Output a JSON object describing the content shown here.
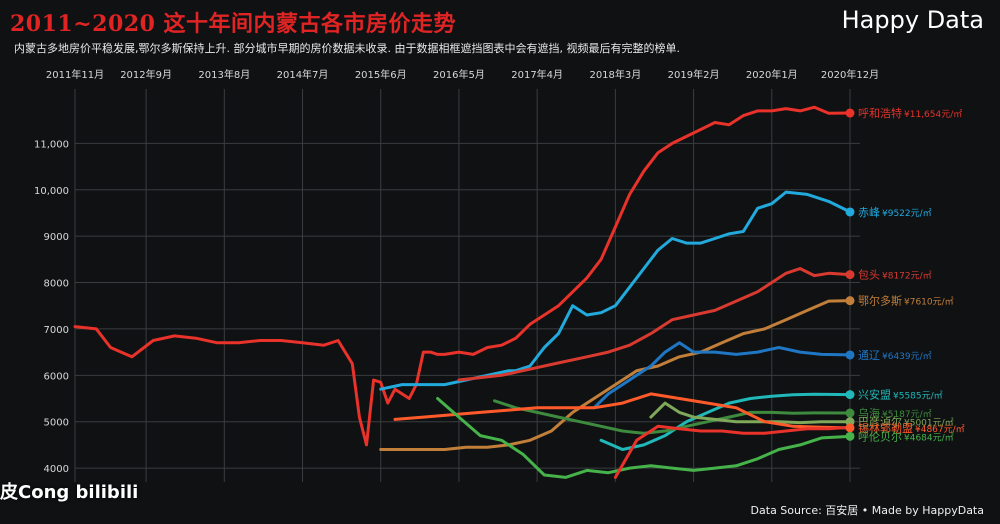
{
  "header": {
    "title": "2011~2020 这十年间内蒙古各市房价走势",
    "subtitle": "内蒙古多地房价平稳发展,鄂尔多斯保持上升. 部分城市早期的房价数据未收录. 由于数据相框遮挡图表中会有遮挡, 视频最后有完整的榜单.",
    "brand_word1": "Happy",
    "brand_word2": "Data"
  },
  "footer": {
    "source": "Data Source: 百安居 • Made by HappyData",
    "watermark": "皮Cong bilibili"
  },
  "colors": {
    "background": "#0f1113",
    "title": "#e02424",
    "grid": "#3a3d40",
    "axis_text": "#d8d8d8"
  },
  "chart_data": {
    "type": "line",
    "title": "",
    "xlabel": "",
    "ylabel": "",
    "x_axis_position": "top",
    "x_tick_labels": [
      "2011年11月",
      "2012年9月",
      "2013年8月",
      "2014年7月",
      "2015年6月",
      "2016年5月",
      "2017年4月",
      "2018年3月",
      "2019年2月",
      "2020年1月",
      "2020年12月"
    ],
    "x_ticks": [
      "2011-11",
      "2012-09",
      "2013-08",
      "2014-07",
      "2015-06",
      "2016-05",
      "2017-04",
      "2018-03",
      "2019-02",
      "2020-01",
      "2020-12"
    ],
    "xlim": [
      "2011-11",
      "2020-12"
    ],
    "ylim": [
      3700,
      12000
    ],
    "y_ticks": [
      4000,
      5000,
      6000,
      7000,
      8000,
      9000,
      10000,
      11000
    ],
    "y_tick_labels": [
      "4000",
      "5000",
      "6000",
      "7000",
      "8000",
      "9000",
      "10,000",
      "11,000"
    ],
    "grid": true,
    "series": [
      {
        "name": "呼和浩特",
        "label": "¥11,654元/㎡",
        "color": "#e8322a",
        "x": [
          "2011-11",
          "2012-02",
          "2012-04",
          "2012-07",
          "2012-10",
          "2013-01",
          "2013-04",
          "2013-07",
          "2013-10",
          "2014-01",
          "2014-04",
          "2014-07",
          "2014-10",
          "2014-12",
          "2015-02",
          "2015-03",
          "2015-04",
          "2015-05",
          "2015-06",
          "2015-07",
          "2015-08",
          "2015-09",
          "2015-10",
          "2015-11",
          "2015-12",
          "2016-01",
          "2016-02",
          "2016-03",
          "2016-05",
          "2016-07",
          "2016-09",
          "2016-11",
          "2017-01",
          "2017-03",
          "2017-05",
          "2017-07",
          "2017-09",
          "2017-11",
          "2018-01",
          "2018-03",
          "2018-05",
          "2018-07",
          "2018-09",
          "2018-11",
          "2019-01",
          "2019-03",
          "2019-05",
          "2019-07",
          "2019-09",
          "2019-11",
          "2020-01",
          "2020-03",
          "2020-05",
          "2020-07",
          "2020-09",
          "2020-12"
        ],
        "values": [
          7050,
          7000,
          6600,
          6400,
          6750,
          6850,
          6800,
          6700,
          6700,
          6750,
          6750,
          6700,
          6650,
          6750,
          6250,
          5100,
          4500,
          5900,
          5850,
          5400,
          5700,
          5600,
          5500,
          5800,
          6500,
          6500,
          6450,
          6450,
          6500,
          6450,
          6600,
          6650,
          6800,
          7100,
          7300,
          7500,
          7800,
          8100,
          8500,
          9200,
          9900,
          10400,
          10800,
          11000,
          11150,
          11300,
          11450,
          11400,
          11600,
          11700,
          11700,
          11750,
          11700,
          11780,
          11650,
          11654
        ]
      },
      {
        "name": "赤峰",
        "label": "¥9522元/㎡",
        "color": "#22aadd",
        "x": [
          "2015-06",
          "2015-09",
          "2015-12",
          "2016-03",
          "2016-06",
          "2016-09",
          "2016-12",
          "2017-01",
          "2017-03",
          "2017-05",
          "2017-07",
          "2017-09",
          "2017-11",
          "2018-01",
          "2018-03",
          "2018-05",
          "2018-07",
          "2018-09",
          "2018-11",
          "2019-01",
          "2019-03",
          "2019-05",
          "2019-07",
          "2019-09",
          "2019-11",
          "2020-01",
          "2020-03",
          "2020-06",
          "2020-09",
          "2020-12"
        ],
        "values": [
          5700,
          5800,
          5800,
          5800,
          5900,
          6000,
          6100,
          6100,
          6200,
          6600,
          6900,
          7500,
          7300,
          7350,
          7500,
          7900,
          8300,
          8700,
          8950,
          8850,
          8850,
          8950,
          9050,
          9100,
          9600,
          9700,
          9950,
          9900,
          9750,
          9522
        ]
      },
      {
        "name": "包头",
        "label": "¥8172元/㎡",
        "color": "#d83a30",
        "x": [
          "2016-05",
          "2016-08",
          "2016-11",
          "2017-02",
          "2017-05",
          "2017-08",
          "2017-11",
          "2018-02",
          "2018-05",
          "2018-08",
          "2018-11",
          "2019-02",
          "2019-05",
          "2019-08",
          "2019-11",
          "2020-01",
          "2020-03",
          "2020-05",
          "2020-07",
          "2020-09",
          "2020-12"
        ],
        "values": [
          5900,
          5950,
          6000,
          6100,
          6200,
          6300,
          6400,
          6500,
          6650,
          6900,
          7200,
          7300,
          7400,
          7600,
          7800,
          8000,
          8200,
          8300,
          8150,
          8200,
          8172
        ]
      },
      {
        "name": "鄂尔多斯",
        "label": "¥7610元/㎡",
        "color": "#c27f3a",
        "x": [
          "2015-06",
          "2015-09",
          "2015-12",
          "2016-03",
          "2016-06",
          "2016-09",
          "2016-12",
          "2017-03",
          "2017-06",
          "2017-09",
          "2017-12",
          "2018-03",
          "2018-06",
          "2018-09",
          "2018-12",
          "2019-03",
          "2019-06",
          "2019-09",
          "2019-12",
          "2020-03",
          "2020-06",
          "2020-09",
          "2020-12"
        ],
        "values": [
          4400,
          4400,
          4400,
          4400,
          4450,
          4450,
          4500,
          4600,
          4800,
          5200,
          5500,
          5800,
          6100,
          6200,
          6400,
          6500,
          6700,
          6900,
          7000,
          7200,
          7400,
          7600,
          7610
        ]
      },
      {
        "name": "通辽",
        "label": "¥6439元/㎡",
        "color": "#1f77c4",
        "x": [
          "2017-12",
          "2018-02",
          "2018-04",
          "2018-06",
          "2018-08",
          "2018-10",
          "2018-12",
          "2019-02",
          "2019-05",
          "2019-08",
          "2019-11",
          "2020-02",
          "2020-05",
          "2020-08",
          "2020-12"
        ],
        "values": [
          5300,
          5600,
          5800,
          6000,
          6200,
          6500,
          6700,
          6500,
          6500,
          6450,
          6500,
          6600,
          6500,
          6450,
          6439
        ]
      },
      {
        "name": "兴安盟",
        "label": "¥5585元/㎡",
        "color": "#20b8b8",
        "x": [
          "2018-01",
          "2018-04",
          "2018-07",
          "2018-10",
          "2019-01",
          "2019-04",
          "2019-07",
          "2019-10",
          "2020-01",
          "2020-04",
          "2020-07",
          "2020-12"
        ],
        "values": [
          4600,
          4400,
          4500,
          4700,
          5000,
          5200,
          5400,
          5500,
          5550,
          5580,
          5590,
          5585
        ]
      },
      {
        "name": "乌海",
        "label": "¥5187元/㎡",
        "color": "#3e8a3e",
        "x": [
          "2016-10",
          "2017-01",
          "2017-04",
          "2017-07",
          "2017-10",
          "2018-01",
          "2018-04",
          "2018-07",
          "2018-10",
          "2019-01",
          "2019-04",
          "2019-07",
          "2019-10",
          "2020-01",
          "2020-04",
          "2020-07",
          "2020-12"
        ],
        "values": [
          5450,
          5300,
          5200,
          5100,
          5000,
          4900,
          4800,
          4750,
          4800,
          4900,
          5000,
          5100,
          5200,
          5200,
          5180,
          5190,
          5187
        ]
      },
      {
        "name": "巴彦淖尔",
        "label": "¥5001元/㎡",
        "color": "#7fa85a",
        "x": [
          "2018-08",
          "2018-10",
          "2018-12",
          "2019-02",
          "2019-05",
          "2019-08",
          "2019-11",
          "2020-02",
          "2020-05",
          "2020-08",
          "2020-12"
        ],
        "values": [
          5100,
          5400,
          5200,
          5100,
          5050,
          5000,
          5000,
          5000,
          4980,
          5000,
          5001
        ]
      },
      {
        "name": "锡林郭勒盟",
        "label": "¥4867元/㎡",
        "color": "#ff5a2a",
        "x": [
          "2015-08",
          "2015-12",
          "2016-04",
          "2016-08",
          "2016-12",
          "2017-04",
          "2017-08",
          "2017-12",
          "2018-04",
          "2018-08",
          "2018-12",
          "2019-04",
          "2019-08",
          "2019-12",
          "2020-04",
          "2020-08",
          "2020-12"
        ],
        "values": [
          5050,
          5100,
          5150,
          5200,
          5250,
          5300,
          5300,
          5300,
          5400,
          5600,
          5500,
          5400,
          5300,
          5000,
          4900,
          4880,
          4867
        ]
      },
      {
        "name": "呼伦贝尔",
        "label": "¥4684元/㎡",
        "color": "#46b24a",
        "x": [
          "2016-02",
          "2016-05",
          "2016-08",
          "2016-11",
          "2017-02",
          "2017-05",
          "2017-08",
          "2017-11",
          "2018-02",
          "2018-05",
          "2018-08",
          "2018-11",
          "2019-02",
          "2019-05",
          "2019-08",
          "2019-11",
          "2020-02",
          "2020-05",
          "2020-08",
          "2020-12"
        ],
        "values": [
          5500,
          5100,
          4700,
          4600,
          4300,
          3850,
          3800,
          3950,
          3900,
          4000,
          4050,
          4000,
          3950,
          4000,
          4050,
          4200,
          4400,
          4500,
          4650,
          4684
        ]
      },
      {
        "name": "",
        "label": "",
        "color": "#e8322a",
        "x": [
          "2018-03",
          "2018-06",
          "2018-09",
          "2018-12",
          "2019-03",
          "2019-06",
          "2019-09",
          "2019-12",
          "2020-03",
          "2020-06",
          "2020-09",
          "2020-12"
        ],
        "values": [
          3800,
          4600,
          4900,
          4850,
          4800,
          4800,
          4750,
          4750,
          4800,
          4850,
          4850,
          4880
        ]
      }
    ]
  }
}
